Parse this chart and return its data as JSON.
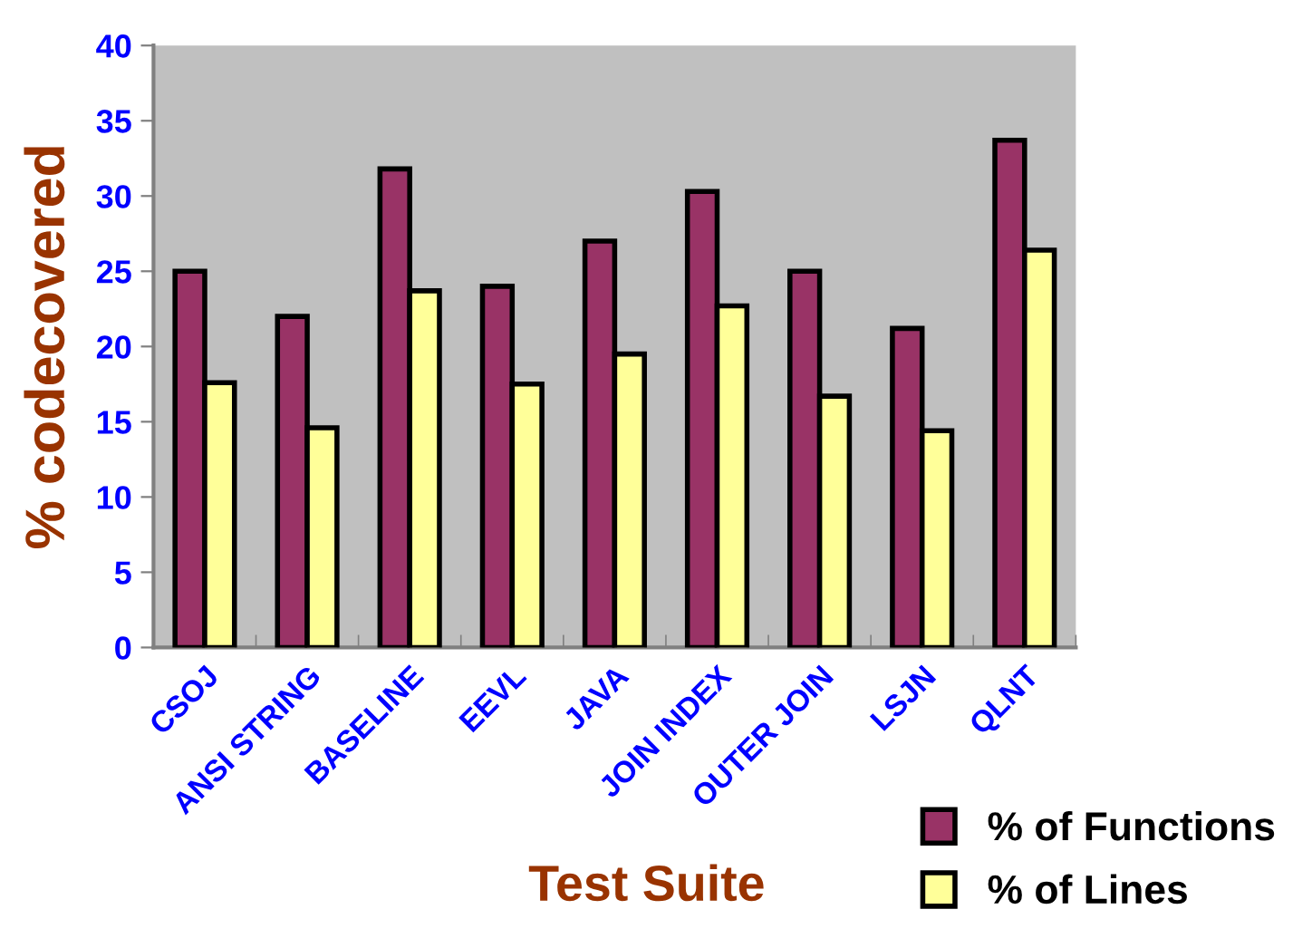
{
  "chart_data": {
    "type": "bar",
    "xlabel": "Test Suite",
    "ylabel": "% codecovered",
    "categories": [
      "CSOJ",
      "ANSI STRING",
      "BASELINE",
      "EEVL",
      "JAVA",
      "JOIN INDEX",
      "OUTER JOIN",
      "LSJN",
      "QLNT"
    ],
    "series": [
      {
        "name": "% of Functions",
        "color": "#993366",
        "values": [
          25,
          22,
          31.8,
          24,
          27,
          30.3,
          25,
          21.2,
          33.7
        ]
      },
      {
        "name": "% of Lines",
        "color": "#ffff99",
        "values": [
          17.6,
          14.6,
          23.7,
          17.5,
          19.5,
          22.7,
          16.7,
          14.4,
          26.4
        ]
      }
    ],
    "ylim": [
      0,
      40
    ],
    "yticks": [
      0,
      5,
      10,
      15,
      20,
      25,
      30,
      35,
      40
    ],
    "grid": false,
    "legend": "bottom right"
  }
}
